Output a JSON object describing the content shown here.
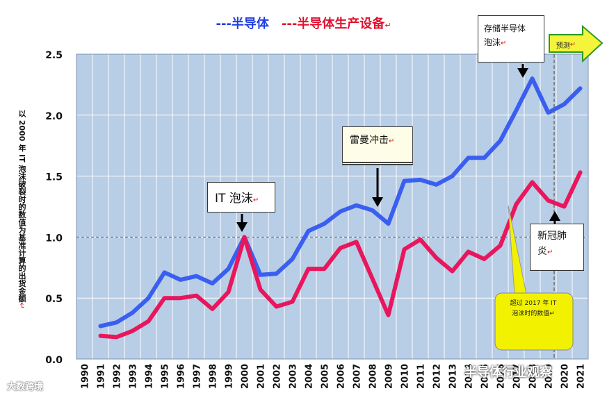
{
  "legend": {
    "semiconductor": "---半导体",
    "equipment": "---半导体生产设备",
    "mark": "↵"
  },
  "ylabel": {
    "text": "以 2000 年 IT 泡沫破裂时的数值为基准计算的出货金额",
    "mark": "↵"
  },
  "callouts": {
    "memory": {
      "line1": "存储半导体",
      "line2": "泡沫",
      "mark": "↵"
    },
    "lehman": {
      "text": "雷曼冲击",
      "mark": "↵"
    },
    "it_bubble": {
      "text": "IT 泡沫",
      "mark": "↵"
    },
    "covid": {
      "line1": "新冠肺",
      "line2": "炎",
      "mark": "↵"
    },
    "yellow": {
      "line1": "超过 2017 年 IT",
      "line2": "泡沫时的数值",
      "mark": "↵"
    }
  },
  "forecast": {
    "label": "预测",
    "mark": "↵"
  },
  "watermarks": {
    "right": "半导体行业观察",
    "left": "大数跨境"
  },
  "colors": {
    "plot_bg": "#b8cde6",
    "grid": "#ffffff",
    "semiconductor": "#3a5ff0",
    "equipment": "#e8175d",
    "callout_yellow": "#f2f200",
    "arrow_yellow": "#f4f43a"
  },
  "chart_data": {
    "type": "line",
    "title": "",
    "xlabel": "",
    "ylabel": "以 2000 年 IT 泡沫破裂时的数值为基准计算的出货金额",
    "categories": [
      "1990",
      "1991",
      "1992",
      "1993",
      "1994",
      "1995",
      "1996",
      "1997",
      "1998",
      "1999",
      "2000",
      "2001",
      "2002",
      "2003",
      "2004",
      "2005",
      "2006",
      "2007",
      "2008",
      "2009",
      "2010",
      "2011",
      "2012",
      "2013",
      "2014",
      "2015",
      "2016",
      "2017",
      "2018",
      "2019",
      "2020",
      "2021"
    ],
    "ylim": [
      0,
      2.5
    ],
    "yticks": [
      "0.0",
      "0.5",
      "1.0",
      "1.5",
      "2.0",
      "2.5"
    ],
    "reference_line": 1.0,
    "series": [
      {
        "name": "半导体",
        "values": [
          null,
          0.27,
          0.3,
          0.38,
          0.5,
          0.71,
          0.65,
          0.68,
          0.62,
          0.74,
          1.0,
          0.69,
          0.7,
          0.82,
          1.05,
          1.11,
          1.21,
          1.26,
          1.22,
          1.11,
          1.46,
          1.47,
          1.43,
          1.5,
          1.65,
          1.65,
          1.79,
          2.04,
          2.3,
          2.02,
          2.09,
          2.22
        ]
      },
      {
        "name": "半导体生产设备",
        "values": [
          null,
          0.19,
          0.18,
          0.23,
          0.31,
          0.5,
          0.5,
          0.52,
          0.41,
          0.55,
          1.0,
          0.57,
          0.43,
          0.47,
          0.74,
          0.74,
          0.91,
          0.96,
          0.66,
          0.36,
          0.9,
          0.98,
          0.83,
          0.72,
          0.88,
          0.82,
          0.93,
          1.27,
          1.45,
          1.3,
          1.25,
          1.53
        ]
      }
    ]
  }
}
